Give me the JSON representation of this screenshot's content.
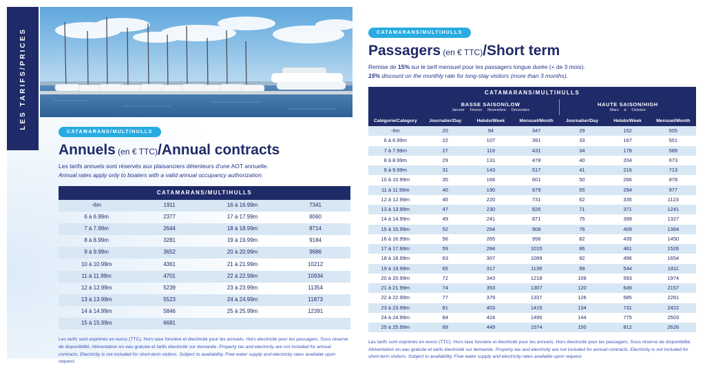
{
  "colors": {
    "navy": "#1f2a68",
    "cyan_badge": "#29abe2",
    "row_alt": "#d8e7f4",
    "footer_blue": "#3450b5"
  },
  "sidebar": {
    "label": "LES TARIFS/PRICES"
  },
  "left": {
    "badge": "CATAMARANS/MULTIHULLS",
    "title": {
      "main": "Annuels",
      "sub": " (en € TTC)",
      "en": "/Annual contracts"
    },
    "desc_fr": "Les tarifs annuels sont réservés aux plaisanciers détenteurs d'une AOT annuelle.",
    "desc_en": "Annual rates apply only to boaters with a valid annual occupancy authorization.",
    "table": {
      "header": "CATAMARANS/MULTIHULLS",
      "rows": [
        [
          "-6m",
          "1911",
          "16 à 16.99m",
          "7341"
        ],
        [
          "6 à 6.99m",
          "2377",
          "17 à 17.99m",
          "8060"
        ],
        [
          "7 à 7.99m",
          "2644",
          "18 à 18.99m",
          "8714"
        ],
        [
          "8 à 8.99m",
          "3281",
          "19 à 19.99m",
          "9184"
        ],
        [
          "9 à 9.99m",
          "3652",
          "20 à 20.99m",
          "9686"
        ],
        [
          "10 à 10.99m",
          "4361",
          "21 à 21.99m",
          "10212"
        ],
        [
          "11 à 11.99m",
          "4701",
          "22 à 22.99m",
          "10934"
        ],
        [
          "12 à 12.99m",
          "5239",
          "23 à 23.99m",
          "11354"
        ],
        [
          "13 à 13.99m",
          "5523",
          "24 à 24.99m",
          "11873"
        ],
        [
          "14 à 14.99m",
          "5846",
          "25 à 25.99m",
          "12391"
        ],
        [
          "15 à 15.99m",
          "6681",
          "",
          ""
        ]
      ]
    },
    "footer_fr": "Les tarifs sont exprimés en euros (TTC). Hors taxe foncière et électricité pour les annuels. Hors électricité pour les passagers. Sous réserve de disponibilité. Alimentation en eau gratuite et tarifs électricité sur demande. ",
    "footer_en": "Property tax and electricity are not included for annual contracts. Electricity is not included for short-term visitors. Subject to availability. Free water supply and electricity rates available upon request."
  },
  "right": {
    "badge": "CATAMARANS/MULTIHULLS",
    "title": {
      "main": "Passagers",
      "sub": " (en € TTC)",
      "en": "/Short term"
    },
    "desc": {
      "fr_1": "Remise de ",
      "fr_bold": "15%",
      "fr_2": " sur le tarif mensuel pour les passagers longue durée (+ de 3 mois).",
      "en_bold": "15%",
      "en_2": " discount on the monthly rate for long-stay visitors (more than 3 months)."
    },
    "table": {
      "header": "CATAMARANS/MULTIHULLS",
      "low_season": {
        "title": "BASSE SAISON/LOW",
        "months": "Janvier Février Novembre Décembre"
      },
      "high_season": {
        "title": "HAUTE SAISON/HIGH",
        "months": "Mars à Octobre"
      },
      "columns": [
        "Catégorie/Category",
        "Journalier/Day",
        "Hebdo/Week",
        "Mensuel/Month",
        "Journalier/Day",
        "Hebdo/Week",
        "Mensuel/Month"
      ],
      "rows": [
        [
          "-6m",
          "20",
          "94",
          "347",
          "29",
          "152",
          "505"
        ],
        [
          "6 à 6.99m",
          "22",
          "107",
          "391",
          "33",
          "167",
          "551"
        ],
        [
          "7 à 7.99m",
          "27",
          "119",
          "431",
          "34",
          "178",
          "589"
        ],
        [
          "8 à 8.99m",
          "29",
          "131",
          "478",
          "40",
          "204",
          "673"
        ],
        [
          "9 à 9.99m",
          "31",
          "143",
          "517",
          "41",
          "216",
          "713"
        ],
        [
          "10 à 10.99m",
          "35",
          "166",
          "601",
          "50",
          "266",
          "878"
        ],
        [
          "11 à 11.99m",
          "40",
          "190",
          "679",
          "55",
          "294",
          "977"
        ],
        [
          "12 à 12.99m",
          "45",
          "220",
          "731",
          "62",
          "335",
          "1123"
        ],
        [
          "13 à 13.99m",
          "47",
          "230",
          "826",
          "71",
          "371",
          "1241"
        ],
        [
          "14 à 14.99m",
          "49",
          "241",
          "871",
          "75",
          "399",
          "1327"
        ],
        [
          "15 à 15.99m",
          "52",
          "254",
          "908",
          "76",
          "409",
          "1364"
        ],
        [
          "16 à 16.99m",
          "56",
          "265",
          "956",
          "82",
          "435",
          "1450"
        ],
        [
          "17 à 17.99m",
          "59",
          "284",
          "1015",
          "86",
          "461",
          "1526"
        ],
        [
          "18 à 18.99m",
          "63",
          "307",
          "1099",
          "92",
          "496",
          "1654"
        ],
        [
          "19 à 19.99m",
          "65",
          "317",
          "1139",
          "99",
          "544",
          "1811"
        ],
        [
          "20 à 20.99m",
          "72",
          "343",
          "1218",
          "108",
          "593",
          "1974"
        ],
        [
          "21 à 21.99m",
          "74",
          "353",
          "1307",
          "120",
          "649",
          "2157"
        ],
        [
          "22 à 22.99m",
          "77",
          "379",
          "1337",
          "126",
          "685",
          "2281"
        ],
        [
          "23 à 23.99m",
          "81",
          "403",
          "1415",
          "134",
          "731",
          "2422"
        ],
        [
          "24 à 24.99m",
          "84",
          "424",
          "1495",
          "144",
          "775",
          "2503"
        ],
        [
          "25 à 25.99m",
          "89",
          "449",
          "1574",
          "150",
          "812",
          "2626"
        ]
      ]
    },
    "footer_fr": "Les tarifs sont exprimés en euros (TTC). Hors taxe foncière et électricité pour les annuels. Hors électricité pour les passagers. Sous réserve de disponibilité. Alimentation en eau gratuite et tarifs électricité sur demande. ",
    "footer_en": "Property tax and electricity are not included for annual contracts. Electricity is not included for short-term visitors. Subject to availability. Free water supply and electricity rates available upon request."
  }
}
